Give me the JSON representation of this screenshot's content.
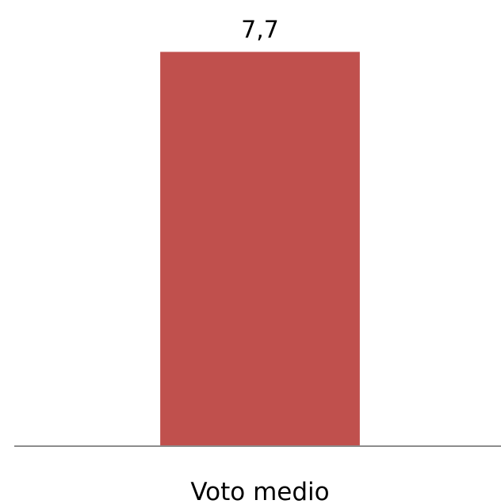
{
  "chart_data": {
    "type": "bar",
    "categories": [
      "Voto medio"
    ],
    "values": [
      7.7
    ],
    "data_labels": [
      "7,7"
    ],
    "title": "",
    "xlabel": "",
    "ylabel": "",
    "ylim": [
      0,
      8.45
    ],
    "grid": false,
    "legend": "none",
    "bar_color": "#c0504d",
    "axis_color": "#8c8c8c"
  }
}
